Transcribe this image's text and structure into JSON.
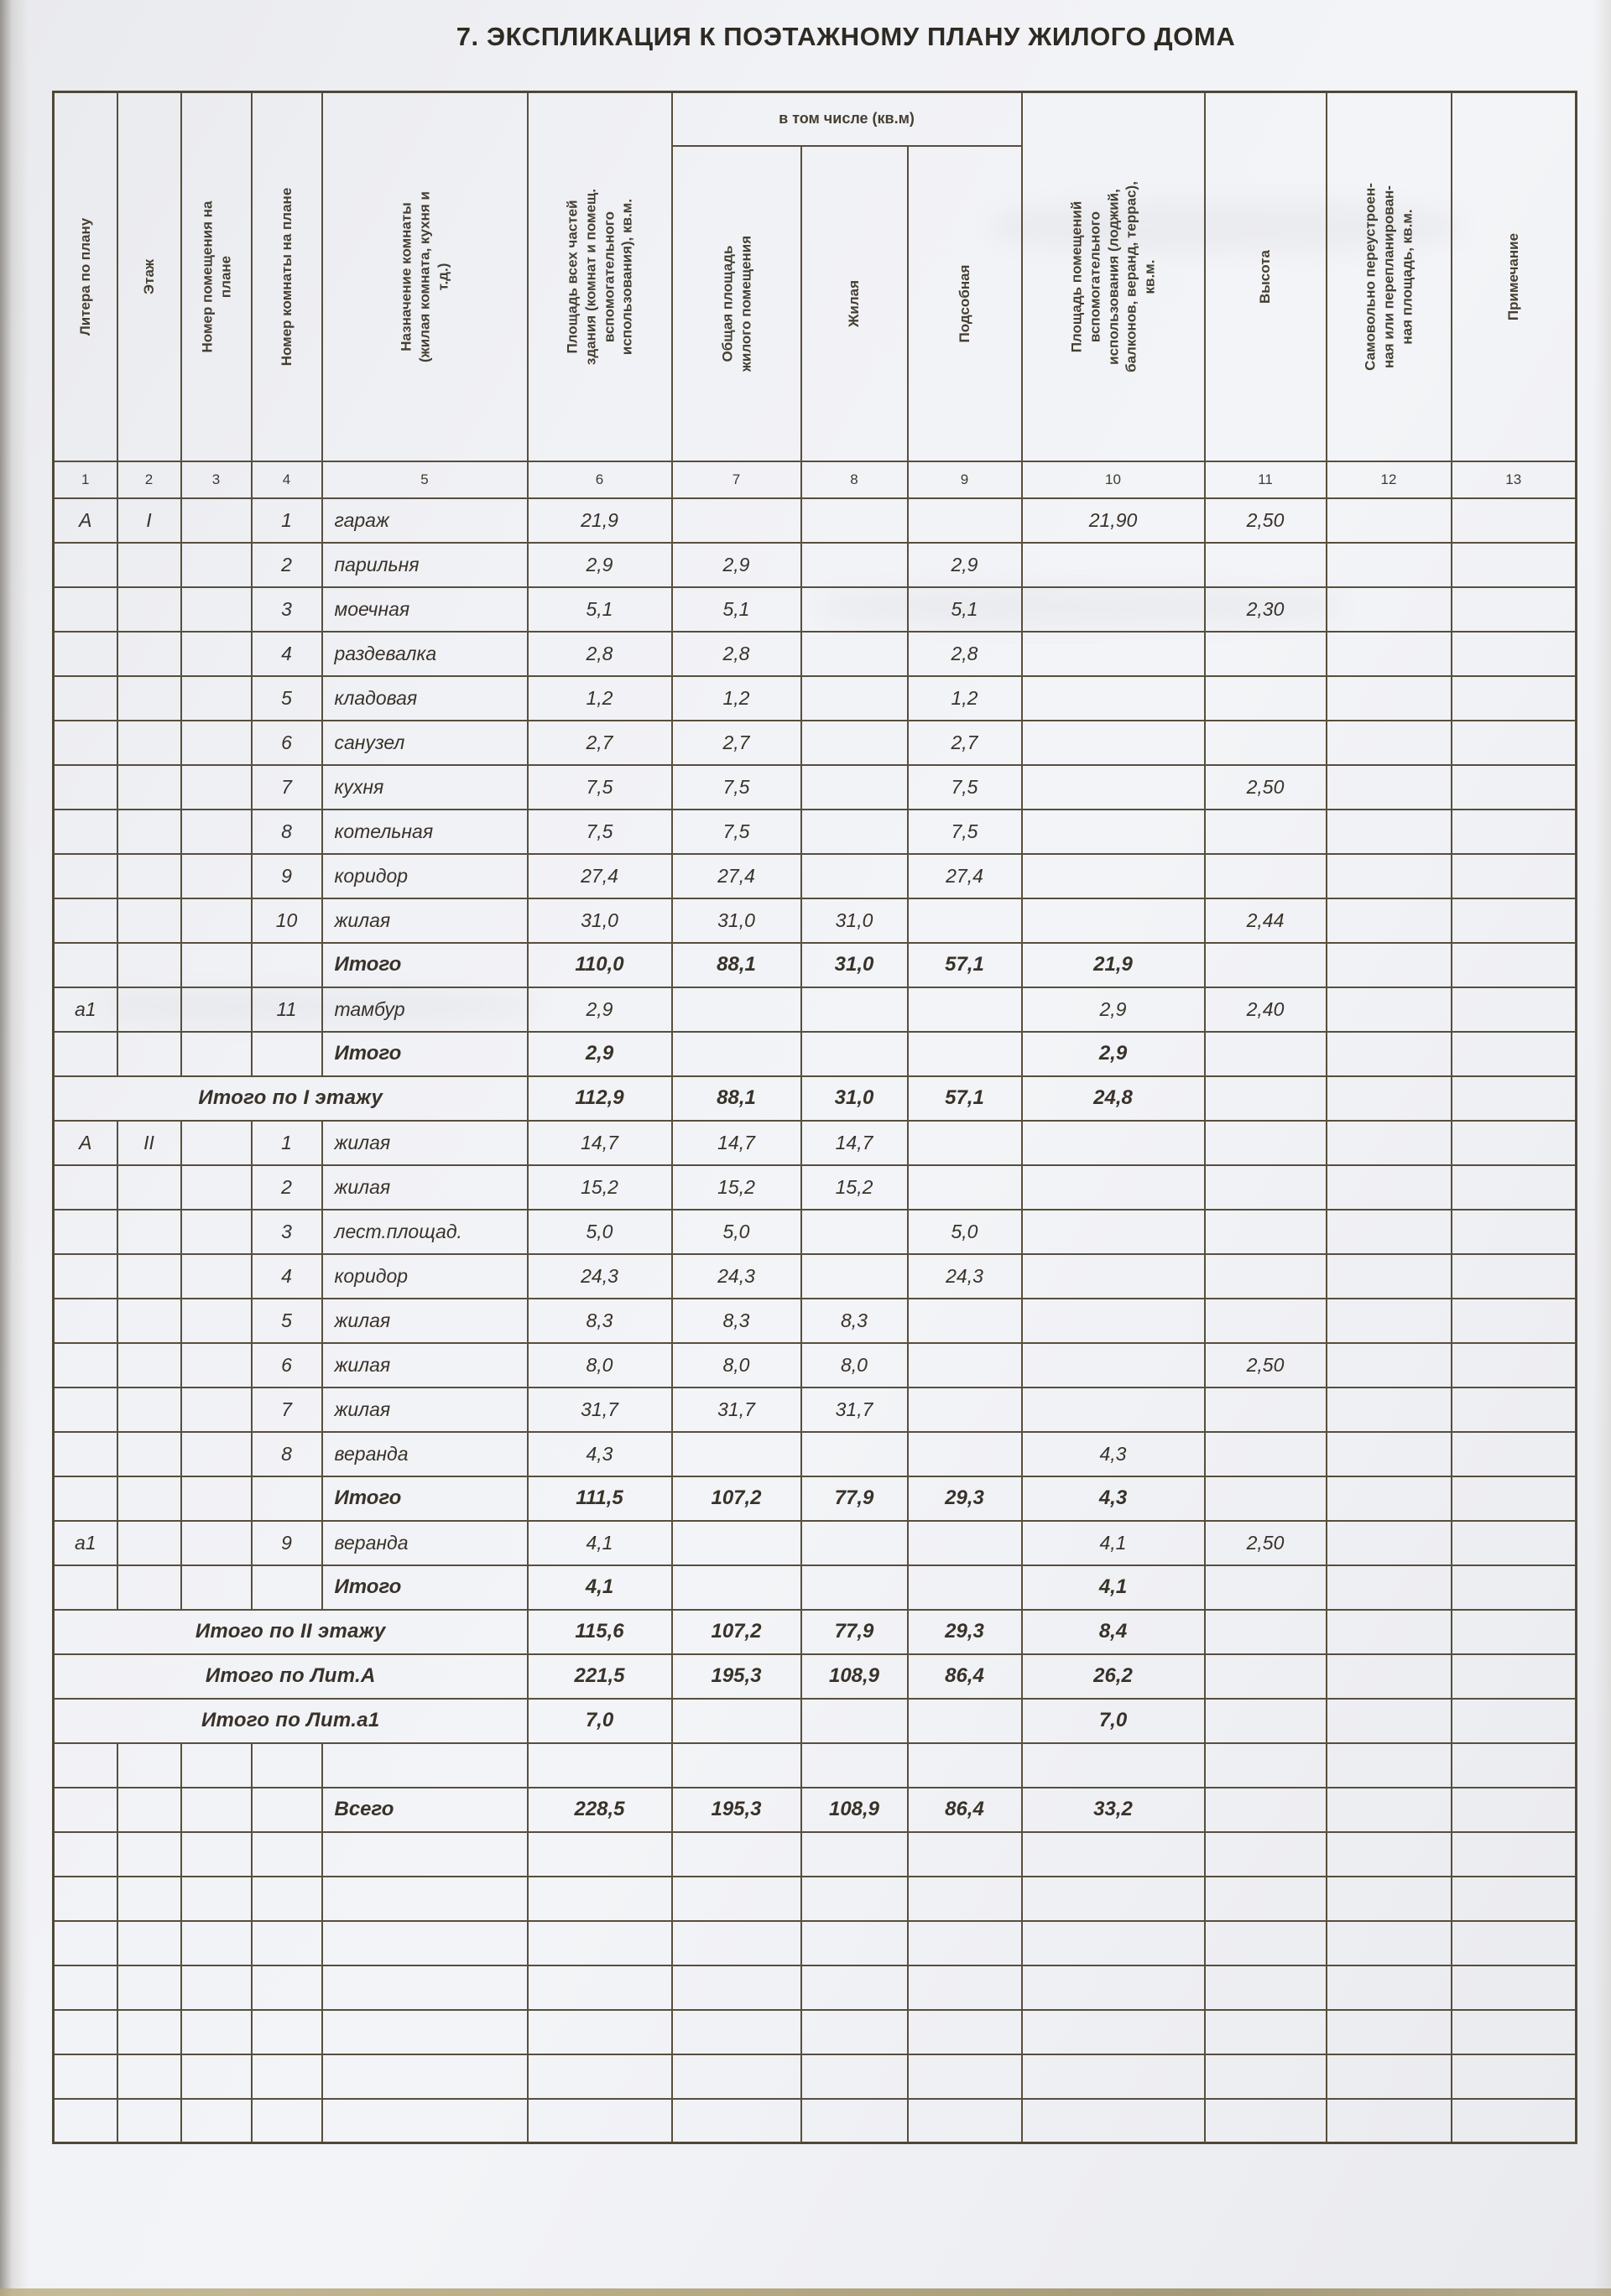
{
  "page": {
    "title": "7. ЭКСПЛИКАЦИЯ К ПОЭТАЖНОМУ ПЛАНУ ЖИЛОГО ДОМА"
  },
  "table": {
    "group_header": "в том числе (кв.м)",
    "columns": [
      {
        "num": "1",
        "label": "Литера по плану"
      },
      {
        "num": "2",
        "label": "Этаж"
      },
      {
        "num": "3",
        "label": "Номер помещения на\nплане"
      },
      {
        "num": "4",
        "label": "Номер комнаты на плане"
      },
      {
        "num": "5",
        "label": "Назначение комнаты\n(жилая комната, кухня и\nт.д.)"
      },
      {
        "num": "6",
        "label": "Площадь всех частей\nздания (комнат и помещ.\nвспомогательного\nиспользования), кв.м."
      },
      {
        "num": "7",
        "label": "Общая площадь\nжилого помещения"
      },
      {
        "num": "8",
        "label": "Жилая"
      },
      {
        "num": "9",
        "label": "Подсобная"
      },
      {
        "num": "10",
        "label": "Площадь помещений\nвспомогательного\nиспользования (лоджий,\nбалконов, веранд, террас),\nкв.м."
      },
      {
        "num": "11",
        "label": "Высота"
      },
      {
        "num": "12",
        "label": "Самовольно переустроен-\nная или перепланирован-\nная площадь, кв.м."
      },
      {
        "num": "13",
        "label": "Примечание"
      }
    ],
    "rows": [
      {
        "t": "d",
        "c": [
          "А",
          "I",
          "",
          "1",
          "гараж",
          "21,9",
          "",
          "",
          "",
          "21,90",
          "2,50",
          "",
          ""
        ]
      },
      {
        "t": "d",
        "c": [
          "",
          "",
          "",
          "2",
          "парильня",
          "2,9",
          "2,9",
          "",
          "2,9",
          "",
          "",
          "",
          ""
        ]
      },
      {
        "t": "d",
        "c": [
          "",
          "",
          "",
          "3",
          "моечная",
          "5,1",
          "5,1",
          "",
          "5,1",
          "",
          "2,30",
          "",
          ""
        ]
      },
      {
        "t": "d",
        "c": [
          "",
          "",
          "",
          "4",
          "раздевалка",
          "2,8",
          "2,8",
          "",
          "2,8",
          "",
          "",
          "",
          ""
        ]
      },
      {
        "t": "d",
        "c": [
          "",
          "",
          "",
          "5",
          "кладовая",
          "1,2",
          "1,2",
          "",
          "1,2",
          "",
          "",
          "",
          ""
        ]
      },
      {
        "t": "d",
        "c": [
          "",
          "",
          "",
          "6",
          "санузел",
          "2,7",
          "2,7",
          "",
          "2,7",
          "",
          "",
          "",
          ""
        ]
      },
      {
        "t": "d",
        "c": [
          "",
          "",
          "",
          "7",
          "кухня",
          "7,5",
          "7,5",
          "",
          "7,5",
          "",
          "2,50",
          "",
          ""
        ]
      },
      {
        "t": "d",
        "c": [
          "",
          "",
          "",
          "8",
          "котельная",
          "7,5",
          "7,5",
          "",
          "7,5",
          "",
          "",
          "",
          ""
        ]
      },
      {
        "t": "d",
        "c": [
          "",
          "",
          "",
          "9",
          "коридор",
          "27,4",
          "27,4",
          "",
          "27,4",
          "",
          "",
          "",
          ""
        ]
      },
      {
        "t": "d",
        "c": [
          "",
          "",
          "",
          "10",
          "жилая",
          "31,0",
          "31,0",
          "31,0",
          "",
          "",
          "2,44",
          "",
          ""
        ]
      },
      {
        "t": "t",
        "c": [
          "",
          "",
          "",
          "",
          "Итого",
          "110,0",
          "88,1",
          "31,0",
          "57,1",
          "21,9",
          "",
          "",
          ""
        ]
      },
      {
        "t": "d",
        "c": [
          "а1",
          "",
          "",
          "11",
          "тамбур",
          "2,9",
          "",
          "",
          "",
          "2,9",
          "2,40",
          "",
          ""
        ]
      },
      {
        "t": "t",
        "c": [
          "",
          "",
          "",
          "",
          "Итого",
          "2,9",
          "",
          "",
          "",
          "2,9",
          "",
          "",
          ""
        ]
      },
      {
        "t": "s",
        "c": [
          "Итого по I этажу",
          "112,9",
          "88,1",
          "31,0",
          "57,1",
          "24,8",
          "",
          "",
          ""
        ]
      },
      {
        "t": "d",
        "c": [
          "А",
          "II",
          "",
          "1",
          "жилая",
          "14,7",
          "14,7",
          "14,7",
          "",
          "",
          "",
          "",
          ""
        ]
      },
      {
        "t": "d",
        "c": [
          "",
          "",
          "",
          "2",
          "жилая",
          "15,2",
          "15,2",
          "15,2",
          "",
          "",
          "",
          "",
          ""
        ]
      },
      {
        "t": "d",
        "c": [
          "",
          "",
          "",
          "3",
          "лест.площад.",
          "5,0",
          "5,0",
          "",
          "5,0",
          "",
          "",
          "",
          ""
        ]
      },
      {
        "t": "d",
        "c": [
          "",
          "",
          "",
          "4",
          "коридор",
          "24,3",
          "24,3",
          "",
          "24,3",
          "",
          "",
          "",
          ""
        ]
      },
      {
        "t": "d",
        "c": [
          "",
          "",
          "",
          "5",
          "жилая",
          "8,3",
          "8,3",
          "8,3",
          "",
          "",
          "",
          "",
          ""
        ]
      },
      {
        "t": "d",
        "c": [
          "",
          "",
          "",
          "6",
          "жилая",
          "8,0",
          "8,0",
          "8,0",
          "",
          "",
          "2,50",
          "",
          ""
        ]
      },
      {
        "t": "d",
        "c": [
          "",
          "",
          "",
          "7",
          "жилая",
          "31,7",
          "31,7",
          "31,7",
          "",
          "",
          "",
          "",
          ""
        ]
      },
      {
        "t": "d",
        "c": [
          "",
          "",
          "",
          "8",
          "веранда",
          "4,3",
          "",
          "",
          "",
          "4,3",
          "",
          "",
          ""
        ]
      },
      {
        "t": "t",
        "c": [
          "",
          "",
          "",
          "",
          "Итого",
          "111,5",
          "107,2",
          "77,9",
          "29,3",
          "4,3",
          "",
          "",
          ""
        ]
      },
      {
        "t": "d",
        "c": [
          "а1",
          "",
          "",
          "9",
          "веранда",
          "4,1",
          "",
          "",
          "",
          "4,1",
          "2,50",
          "",
          ""
        ]
      },
      {
        "t": "t",
        "c": [
          "",
          "",
          "",
          "",
          "Итого",
          "4,1",
          "",
          "",
          "",
          "4,1",
          "",
          "",
          ""
        ]
      },
      {
        "t": "s",
        "c": [
          "Итого по II этажу",
          "115,6",
          "107,2",
          "77,9",
          "29,3",
          "8,4",
          "",
          "",
          ""
        ]
      },
      {
        "t": "s",
        "c": [
          "Итого по Лит.А",
          "221,5",
          "195,3",
          "108,9",
          "86,4",
          "26,2",
          "",
          "",
          ""
        ]
      },
      {
        "t": "s",
        "c": [
          "Итого по Лит.а1",
          "7,0",
          "",
          "",
          "",
          "7,0",
          "",
          "",
          ""
        ]
      },
      {
        "t": "e",
        "c": []
      },
      {
        "t": "t",
        "c": [
          "",
          "",
          "",
          "",
          "Всего",
          "228,5",
          "195,3",
          "108,9",
          "86,4",
          "33,2",
          "",
          "",
          ""
        ]
      },
      {
        "t": "e",
        "c": []
      },
      {
        "t": "e",
        "c": []
      },
      {
        "t": "e",
        "c": []
      },
      {
        "t": "e",
        "c": []
      },
      {
        "t": "e",
        "c": []
      },
      {
        "t": "e",
        "c": []
      },
      {
        "t": "e",
        "c": []
      }
    ]
  }
}
